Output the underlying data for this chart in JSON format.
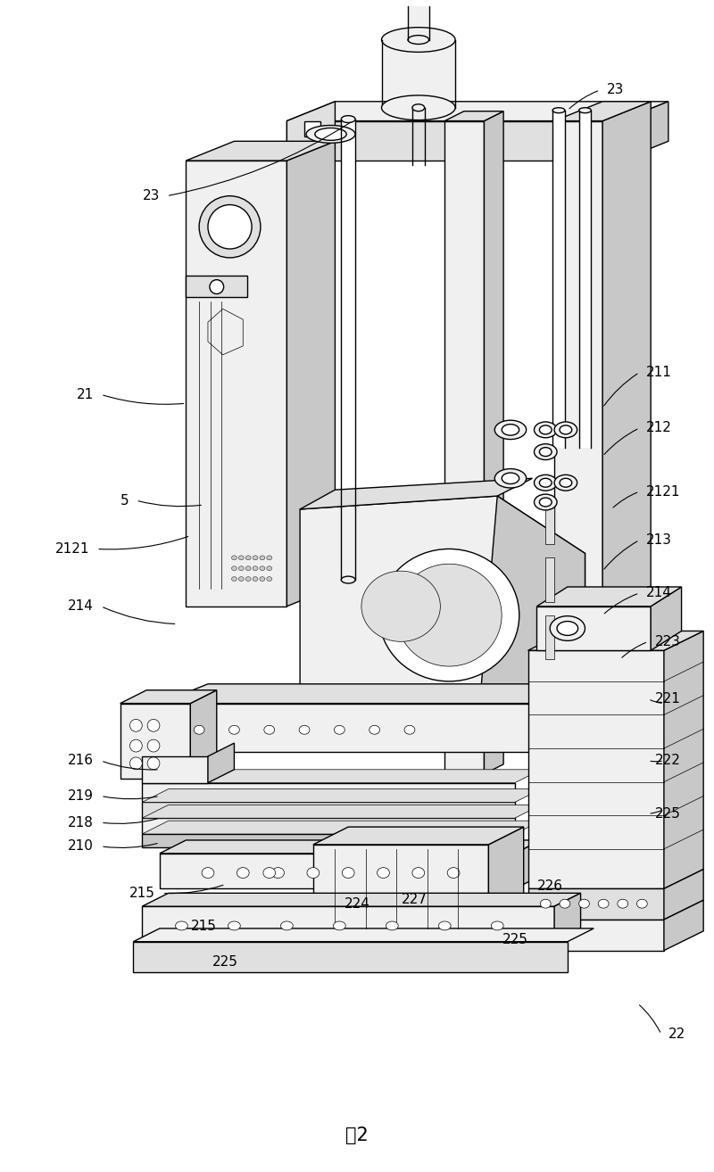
{
  "title": "图2",
  "background_color": "#ffffff",
  "fig_width": 8.0,
  "fig_height": 13.14,
  "line_color": "#000000",
  "text_color": "#000000",
  "font_size": 11,
  "lw_main": 1.0,
  "lw_thin": 0.5,
  "fc_white": "#ffffff",
  "fc_light": "#f0f0f0",
  "fc_mid": "#e0e0e0",
  "fc_dark": "#c8c8c8"
}
